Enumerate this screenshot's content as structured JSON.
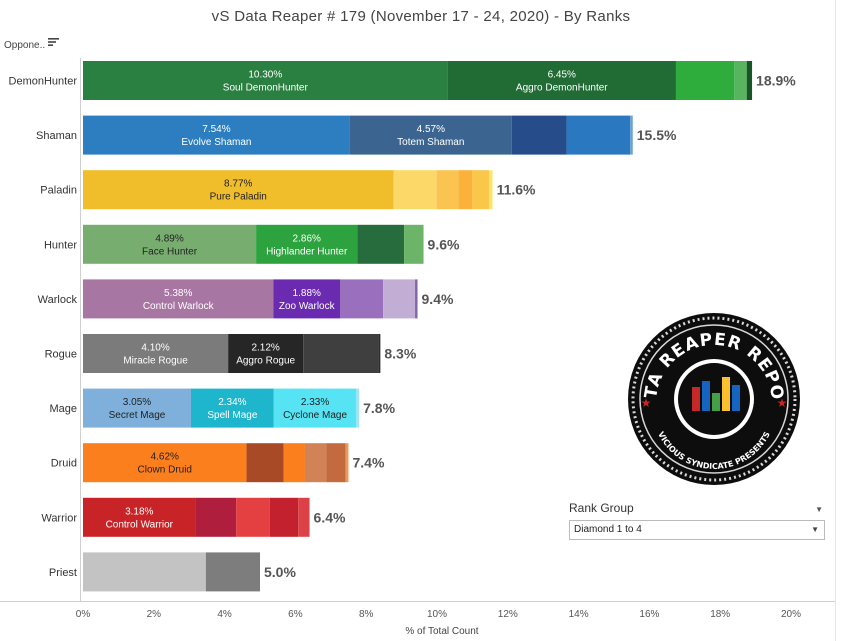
{
  "title": "vS Data Reaper #  179 (November 17 - 24, 2020) - By Ranks",
  "column_header": "Oppone..",
  "rank_group": {
    "label": "Rank Group",
    "selected": "Diamond 1 to 4"
  },
  "logo": {
    "line1": "DATA REAPER REPORT",
    "line2": "VICIOUS SYNDICATE PRESENTS"
  },
  "chart_data": {
    "type": "bar",
    "orientation": "horizontal",
    "stacked": true,
    "title": "vS Data Reaper #  179 (November 17 - 24, 2020) - By Ranks",
    "xlabel": "% of Total Count",
    "ylabel": "Oppone..",
    "xlim": [
      0,
      20
    ],
    "xticks": [
      "0%",
      "2%",
      "4%",
      "6%",
      "8%",
      "10%",
      "12%",
      "14%",
      "16%",
      "18%",
      "20%"
    ],
    "grid": false,
    "categories": [
      "DemonHunter",
      "Shaman",
      "Paladin",
      "Hunter",
      "Warlock",
      "Rogue",
      "Mage",
      "Druid",
      "Warrior",
      "Priest"
    ],
    "totals": [
      "18.9%",
      "15.5%",
      "11.6%",
      "9.6%",
      "9.4%",
      "8.3%",
      "7.8%",
      "7.4%",
      "6.4%",
      "5.0%"
    ],
    "rows": [
      {
        "class": "DemonHunter",
        "total": 18.9,
        "segments": [
          {
            "value": 10.3,
            "pct_label": "10.30%",
            "name": "Soul DemonHunter",
            "color": "#2a8040"
          },
          {
            "value": 6.45,
            "pct_label": "6.45%",
            "name": "Aggro DemonHunter",
            "color": "#216b35"
          },
          {
            "value": 1.65,
            "color": "#2eac3c"
          },
          {
            "value": 0.35,
            "color": "#59b460"
          },
          {
            "value": 0.15,
            "color": "#175428"
          }
        ]
      },
      {
        "class": "Shaman",
        "total": 15.5,
        "segments": [
          {
            "value": 7.54,
            "pct_label": "7.54%",
            "name": "Evolve Shaman",
            "color": "#2d7ec0"
          },
          {
            "value": 4.57,
            "pct_label": "4.57%",
            "name": "Totem Shaman",
            "color": "#3b6590"
          },
          {
            "value": 1.55,
            "color": "#264d8a"
          },
          {
            "value": 1.8,
            "color": "#2a78c0"
          },
          {
            "value": 0.07,
            "color": "#6aa2d8"
          }
        ]
      },
      {
        "class": "Paladin",
        "total": 11.6,
        "segments": [
          {
            "value": 8.77,
            "pct_label": "8.77%",
            "name": "Pure Paladin",
            "color": "#f0bd2b"
          },
          {
            "value": 1.22,
            "color": "#fcd869"
          },
          {
            "value": 0.62,
            "color": "#fbc451"
          },
          {
            "value": 0.39,
            "color": "#fbb13a"
          },
          {
            "value": 0.47,
            "color": "#fbc74a"
          },
          {
            "value": 0.1,
            "color": "#fde46a"
          }
        ]
      },
      {
        "class": "Hunter",
        "total": 9.6,
        "segments": [
          {
            "value": 4.89,
            "pct_label": "4.89%",
            "name": "Face Hunter",
            "color": "#78ad70"
          },
          {
            "value": 2.86,
            "pct_label": "2.86%",
            "name": "Highlander Hunter",
            "color": "#2ca33e"
          },
          {
            "value": 1.32,
            "color": "#276c3c"
          },
          {
            "value": 0.55,
            "color": "#6cb468"
          }
        ]
      },
      {
        "class": "Warlock",
        "total": 9.4,
        "segments": [
          {
            "value": 5.38,
            "pct_label": "5.38%",
            "name": "Control Warlock",
            "color": "#a776a2"
          },
          {
            "value": 1.88,
            "pct_label": "1.88%",
            "name": "Zoo Warlock",
            "color": "#6a2bb0"
          },
          {
            "value": 1.22,
            "color": "#9a70be"
          },
          {
            "value": 0.9,
            "color": "#c2aed4"
          },
          {
            "value": 0.07,
            "color": "#8066a8"
          }
        ]
      },
      {
        "class": "Rogue",
        "total": 8.3,
        "segments": [
          {
            "value": 4.1,
            "pct_label": "4.10%",
            "name": "Miracle Rogue",
            "color": "#7b7b7b"
          },
          {
            "value": 2.12,
            "pct_label": "2.12%",
            "name": "Aggro Rogue",
            "color": "#262626"
          },
          {
            "value": 2.12,
            "color": "#3f3f3f"
          },
          {
            "value": 0.06,
            "color": "#2a2a2a"
          }
        ]
      },
      {
        "class": "Mage",
        "total": 7.8,
        "segments": [
          {
            "value": 3.05,
            "pct_label": "3.05%",
            "name": "Secret Mage",
            "color": "#7fb0dc"
          },
          {
            "value": 2.34,
            "pct_label": "2.34%",
            "name": "Spell Mage",
            "color": "#1eb6cc"
          },
          {
            "value": 2.33,
            "pct_label": "2.33%",
            "name": "Cyclone Mage",
            "color": "#56e4f4"
          },
          {
            "value": 0.08,
            "color": "#9ee4f4"
          }
        ]
      },
      {
        "class": "Druid",
        "total": 7.4,
        "segments": [
          {
            "value": 4.62,
            "pct_label": "4.62%",
            "name": "Clown Druid",
            "color": "#fb7f1c"
          },
          {
            "value": 1.05,
            "color": "#a84a26"
          },
          {
            "value": 0.6,
            "color": "#fb7f1c"
          },
          {
            "value": 0.6,
            "color": "#d18256"
          },
          {
            "value": 0.55,
            "color": "#c36a3e"
          },
          {
            "value": 0.08,
            "color": "#e89a5c"
          }
        ]
      },
      {
        "class": "Warrior",
        "total": 6.4,
        "segments": [
          {
            "value": 3.18,
            "pct_label": "3.18%",
            "name": "Control Warrior",
            "color": "#c82428"
          },
          {
            "value": 1.15,
            "color": "#b01e3e"
          },
          {
            "value": 0.95,
            "color": "#e54041"
          },
          {
            "value": 0.8,
            "color": "#c3212d"
          },
          {
            "value": 0.32,
            "color": "#dc4148"
          }
        ]
      },
      {
        "class": "Priest",
        "total": 5.0,
        "segments": [
          {
            "value": 3.47,
            "color": "#c3c3c3"
          },
          {
            "value": 1.53,
            "color": "#7d7d7d"
          }
        ]
      }
    ]
  }
}
